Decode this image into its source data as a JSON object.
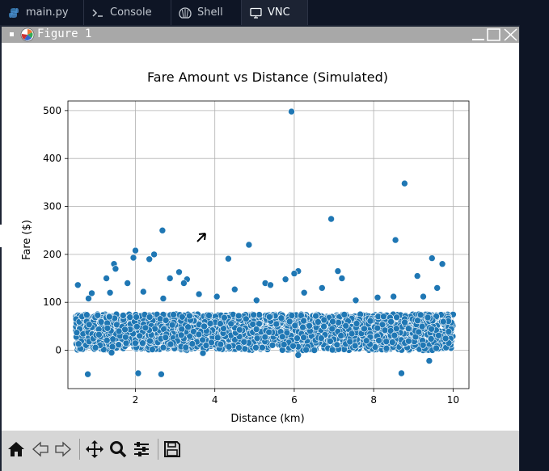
{
  "tabs": [
    {
      "label": "main.py",
      "icon": "python-icon"
    },
    {
      "label": "Console",
      "icon": "terminal-icon"
    },
    {
      "label": "Shell",
      "icon": "shell-icon"
    },
    {
      "label": "VNC",
      "icon": "monitor-icon"
    }
  ],
  "window": {
    "title": "Figure 1"
  },
  "chart_data": {
    "type": "scatter",
    "title": "Fare Amount vs Distance (Simulated)",
    "xlabel": "Distance (km)",
    "ylabel": "Fare ($)",
    "xlim": [
      0.3,
      10.4
    ],
    "ylim": [
      -80,
      520
    ],
    "xticks": [
      2,
      4,
      6,
      8,
      10
    ],
    "yticks": [
      0,
      100,
      200,
      300,
      400,
      500
    ],
    "grid": true,
    "color": "#1f77b4",
    "dense_band": {
      "x_range": [
        0.5,
        10.0
      ],
      "y_range": [
        0,
        75
      ]
    },
    "outliers": [
      {
        "x": 5.93,
        "y": 498
      },
      {
        "x": 8.78,
        "y": 348
      },
      {
        "x": 6.93,
        "y": 274
      },
      {
        "x": 2.68,
        "y": 250
      },
      {
        "x": 8.55,
        "y": 230
      },
      {
        "x": 4.86,
        "y": 220
      },
      {
        "x": 2.0,
        "y": 208
      },
      {
        "x": 2.47,
        "y": 200
      },
      {
        "x": 1.95,
        "y": 193
      },
      {
        "x": 9.47,
        "y": 192
      },
      {
        "x": 4.34,
        "y": 191
      },
      {
        "x": 2.35,
        "y": 190
      },
      {
        "x": 9.73,
        "y": 180
      },
      {
        "x": 1.46,
        "y": 180
      },
      {
        "x": 1.5,
        "y": 170
      },
      {
        "x": 6.1,
        "y": 165
      },
      {
        "x": 7.1,
        "y": 165
      },
      {
        "x": 3.1,
        "y": 163
      },
      {
        "x": 6.0,
        "y": 160
      },
      {
        "x": 9.1,
        "y": 155
      },
      {
        "x": 2.87,
        "y": 150
      },
      {
        "x": 3.3,
        "y": 148
      },
      {
        "x": 5.78,
        "y": 148
      },
      {
        "x": 7.2,
        "y": 150
      },
      {
        "x": 1.27,
        "y": 150
      },
      {
        "x": 3.22,
        "y": 140
      },
      {
        "x": 5.27,
        "y": 140
      },
      {
        "x": 1.8,
        "y": 140
      },
      {
        "x": 5.4,
        "y": 136
      },
      {
        "x": 0.55,
        "y": 136
      },
      {
        "x": 9.6,
        "y": 130
      },
      {
        "x": 6.7,
        "y": 130
      },
      {
        "x": 4.5,
        "y": 127
      },
      {
        "x": 2.2,
        "y": 122
      },
      {
        "x": 0.9,
        "y": 119
      },
      {
        "x": 1.36,
        "y": 120
      },
      {
        "x": 6.25,
        "y": 120
      },
      {
        "x": 3.6,
        "y": 117
      },
      {
        "x": 4.05,
        "y": 112
      },
      {
        "x": 8.1,
        "y": 110
      },
      {
        "x": 8.5,
        "y": 112
      },
      {
        "x": 9.25,
        "y": 112
      },
      {
        "x": 2.7,
        "y": 108
      },
      {
        "x": 0.82,
        "y": 108
      },
      {
        "x": 5.05,
        "y": 104
      },
      {
        "x": 7.55,
        "y": 104
      },
      {
        "x": 0.8,
        "y": -50
      },
      {
        "x": 2.07,
        "y": -48
      },
      {
        "x": 2.65,
        "y": -50
      },
      {
        "x": 8.7,
        "y": -48
      },
      {
        "x": 9.4,
        "y": -22
      },
      {
        "x": 6.1,
        "y": -10
      },
      {
        "x": 1.4,
        "y": -5
      },
      {
        "x": 3.7,
        "y": -6
      }
    ]
  },
  "toolbar": {
    "buttons": [
      {
        "name": "home-icon"
      },
      {
        "name": "back-icon"
      },
      {
        "name": "forward-icon"
      },
      {
        "name": "pan-icon"
      },
      {
        "name": "zoom-icon"
      },
      {
        "name": "configure-icon"
      },
      {
        "name": "save-icon"
      }
    ]
  }
}
